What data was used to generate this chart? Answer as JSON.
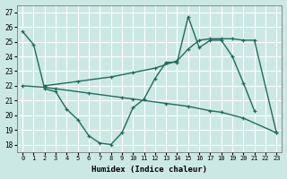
{
  "xlabel": "Humidex (Indice chaleur)",
  "bg_color": "#cce8e4",
  "grid_color": "#ffffff",
  "line_color": "#1e6b5e",
  "ylim": [
    17.5,
    27.5
  ],
  "xlim": [
    -0.5,
    23.5
  ],
  "yticks": [
    18,
    19,
    20,
    21,
    22,
    23,
    24,
    25,
    26,
    27
  ],
  "xticks": [
    0,
    1,
    2,
    3,
    4,
    5,
    6,
    7,
    8,
    9,
    10,
    11,
    12,
    13,
    14,
    15,
    16,
    17,
    18,
    19,
    20,
    21,
    22,
    23
  ],
  "line1_x": [
    0,
    1,
    2,
    3,
    4,
    5,
    6,
    7,
    8,
    9,
    10,
    11,
    12,
    13,
    14,
    15,
    16,
    17,
    18,
    19,
    20,
    21
  ],
  "line1_y": [
    25.7,
    24.8,
    21.8,
    21.6,
    20.4,
    19.7,
    18.6,
    18.1,
    18.0,
    18.8,
    20.5,
    21.1,
    22.5,
    23.6,
    23.6,
    26.7,
    24.6,
    25.1,
    25.1,
    24.0,
    22.2,
    20.3
  ],
  "line2_x": [
    0,
    2,
    3,
    6,
    9,
    10,
    13,
    15,
    17,
    18,
    20,
    23
  ],
  "line2_y": [
    22.0,
    21.9,
    21.8,
    21.5,
    21.2,
    21.1,
    20.8,
    20.6,
    20.3,
    20.2,
    19.8,
    18.8
  ],
  "line3_x": [
    2,
    5,
    8,
    10,
    12,
    14,
    15,
    16,
    17,
    18,
    19,
    20,
    21,
    23
  ],
  "line3_y": [
    22.0,
    22.3,
    22.6,
    22.9,
    23.2,
    23.7,
    24.5,
    25.1,
    25.2,
    25.2,
    25.2,
    25.1,
    25.1,
    18.8
  ]
}
